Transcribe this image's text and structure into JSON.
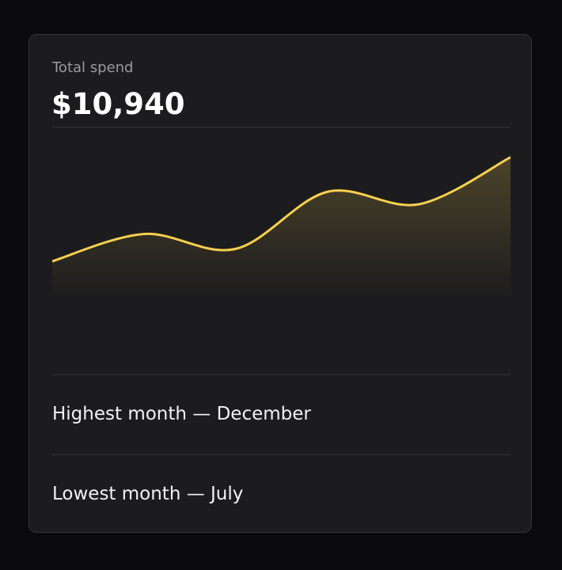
{
  "header": {
    "label": "Total spend",
    "total": "$10,940"
  },
  "chart_data": {
    "type": "area",
    "values": [
      46,
      57,
      51,
      74,
      69,
      88
    ],
    "ylim": [
      0,
      100
    ],
    "color": "#f5cf4f"
  },
  "stats": [
    "Highest month — December",
    "Lowest month — July"
  ]
}
